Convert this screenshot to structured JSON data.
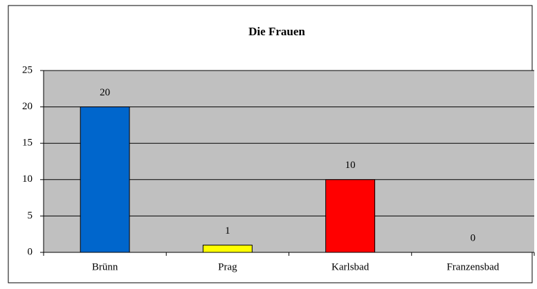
{
  "chart_data": {
    "type": "bar",
    "title": "Die Frauen",
    "categories": [
      "Brünn",
      "Prag",
      "Karlsbad",
      "Franzensbad"
    ],
    "values": [
      20,
      1,
      10,
      0
    ],
    "colors": [
      "#0066cc",
      "#ffff00",
      "#ff0000"
    ],
    "ylim": [
      0,
      25
    ],
    "yticks": [
      0,
      5,
      10,
      15,
      20,
      25
    ],
    "grid": true,
    "data_labels": true
  }
}
